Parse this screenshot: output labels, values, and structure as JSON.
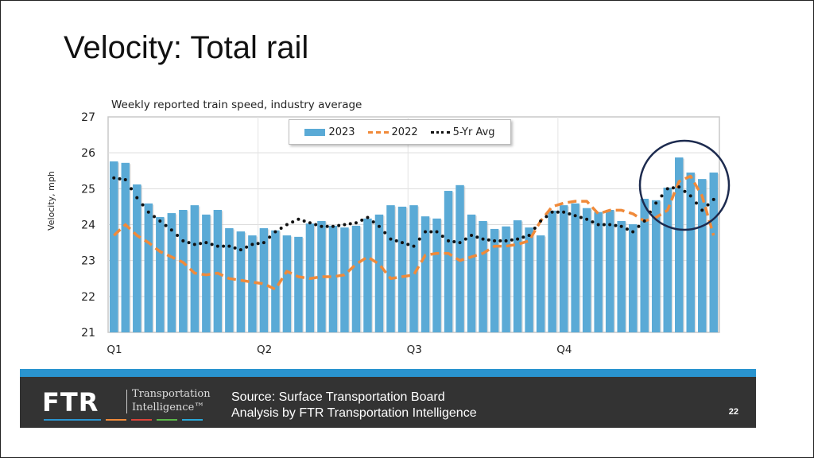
{
  "slide": {
    "title": "Velocity: Total rail",
    "page_number": "22"
  },
  "footer": {
    "logo_text": "FTR",
    "logo_sub_line1": "Transportation",
    "logo_sub_line2": "Intelligence™",
    "source_line1": "Source: Surface Transportation Board",
    "source_line2": "Analysis by FTR Transportation Intelligence",
    "accent_colors": [
      "#2a94cf",
      "#f08a3a",
      "#d9443a",
      "#5bb849",
      "#2aa8d8"
    ]
  },
  "chart_data": {
    "type": "bar",
    "title": "Weekly reported train speed, industry average",
    "xlabel": "",
    "ylabel": "Velocity, mph",
    "ylim": [
      21,
      27
    ],
    "yticks": [
      21,
      22,
      23,
      24,
      25,
      26,
      27
    ],
    "x_tick_labels": [
      {
        "label": "Q1",
        "week": 1
      },
      {
        "label": "Q2",
        "week": 14
      },
      {
        "label": "Q3",
        "week": 27
      },
      {
        "label": "Q4",
        "week": 40
      }
    ],
    "grid": true,
    "legend_position": "top-center",
    "num_weeks": 53,
    "series": [
      {
        "name": "2023",
        "type": "bar",
        "color": "#5aaad6",
        "values": [
          25.76,
          25.72,
          25.12,
          24.59,
          24.21,
          24.32,
          24.41,
          24.54,
          24.28,
          24.41,
          23.9,
          23.81,
          23.7,
          23.9,
          23.84,
          23.7,
          23.66,
          24.03,
          24.1,
          23.97,
          23.92,
          23.97,
          24.17,
          24.28,
          24.54,
          24.5,
          24.54,
          24.23,
          24.17,
          24.94,
          25.1,
          24.28,
          24.1,
          23.88,
          23.95,
          24.12,
          23.92,
          23.7,
          24.39,
          24.54,
          24.59,
          24.46,
          24.35,
          24.41,
          24.1,
          24.01,
          24.72,
          24.68,
          25.03,
          25.87,
          25.45,
          25.27,
          25.45
        ]
      },
      {
        "name": "2022",
        "type": "line-dashed",
        "color": "#f08a3a",
        "values": [
          23.7,
          24.0,
          23.7,
          23.5,
          23.25,
          23.1,
          22.95,
          22.65,
          22.6,
          22.65,
          22.5,
          22.45,
          22.4,
          22.35,
          22.2,
          22.7,
          22.55,
          22.5,
          22.55,
          22.55,
          22.6,
          22.9,
          23.1,
          22.9,
          22.5,
          22.55,
          22.6,
          23.15,
          23.2,
          23.2,
          23.0,
          23.1,
          23.2,
          23.4,
          23.4,
          23.45,
          23.55,
          24.1,
          24.5,
          24.6,
          24.65,
          24.65,
          24.3,
          24.4,
          24.4,
          24.3,
          24.1,
          24.2,
          24.4,
          25.2,
          25.35,
          24.8,
          23.7
        ]
      },
      {
        "name": "5-Yr Avg",
        "type": "line-dotted",
        "color": "#111111",
        "values": [
          25.3,
          25.25,
          24.75,
          24.35,
          24.1,
          23.85,
          23.55,
          23.45,
          23.5,
          23.4,
          23.4,
          23.3,
          23.45,
          23.5,
          23.8,
          24.0,
          24.15,
          24.05,
          23.95,
          23.95,
          24.0,
          24.05,
          24.2,
          23.95,
          23.6,
          23.5,
          23.4,
          23.8,
          23.8,
          23.55,
          23.5,
          23.7,
          23.6,
          23.55,
          23.55,
          23.6,
          23.7,
          24.1,
          24.35,
          24.35,
          24.25,
          24.15,
          24.0,
          24.0,
          23.95,
          23.8,
          24.1,
          24.6,
          25.0,
          25.05,
          24.8,
          24.4,
          24.7
        ]
      }
    ],
    "annotation": "circle highlighting recent weeks"
  }
}
